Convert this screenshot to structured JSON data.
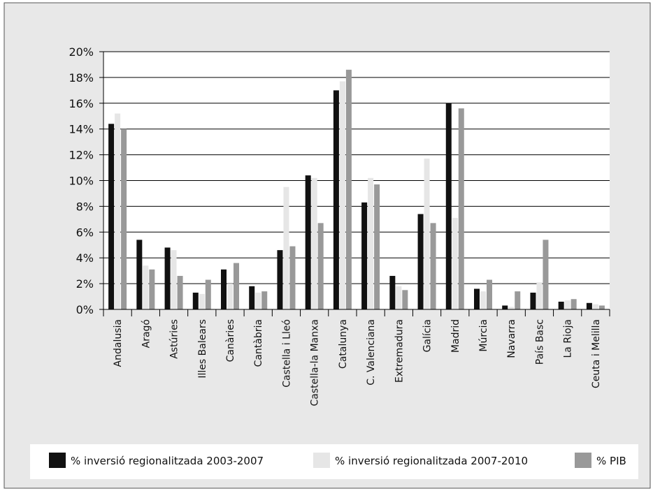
{
  "chart_data": {
    "type": "bar",
    "categories": [
      "Andalusia",
      "Aragó",
      "Astúries",
      "Illes Balears",
      "Canàries",
      "Cantàbria",
      "Castella i Lleó",
      "Castella-la Manxa",
      "Catalunya",
      "C. Valenciana",
      "Extremadura",
      "Galícia",
      "Madrid",
      "Múrcia",
      "Navarra",
      "País Basc",
      "La Rioja",
      "Ceuta i Melilla"
    ],
    "series": [
      {
        "name": "% inversió regionalitzada 2003-2007",
        "color": "#111111",
        "values": [
          14.4,
          5.4,
          4.8,
          1.3,
          3.1,
          1.8,
          4.6,
          10.4,
          17.0,
          8.3,
          2.6,
          7.4,
          16.0,
          1.6,
          0.3,
          1.3,
          0.6,
          0.5
        ]
      },
      {
        "name": "% inversió regionalitzada 2007-2010",
        "color": "#e6e6e6",
        "values": [
          15.2,
          3.4,
          4.6,
          1.2,
          2.0,
          1.3,
          9.5,
          10.2,
          17.7,
          10.2,
          1.8,
          11.7,
          7.1,
          1.4,
          0.2,
          2.1,
          0.7,
          0.4
        ]
      },
      {
        "name": "% PIB",
        "color": "#999999",
        "values": [
          14.0,
          3.1,
          2.6,
          2.3,
          3.6,
          1.4,
          4.9,
          6.7,
          18.6,
          9.7,
          1.5,
          6.7,
          15.6,
          2.3,
          1.4,
          5.4,
          0.8,
          0.3
        ]
      }
    ],
    "ylim": [
      0,
      20
    ],
    "yticks": [
      "0%",
      "2%",
      "4%",
      "6%",
      "8%",
      "10%",
      "12%",
      "14%",
      "16%",
      "18%",
      "20%"
    ],
    "grid": true,
    "legend_position": "bottom"
  },
  "colors": {
    "outer_background": "#e8e8e8",
    "plot_background": "#ffffff",
    "grid": "#000000"
  }
}
